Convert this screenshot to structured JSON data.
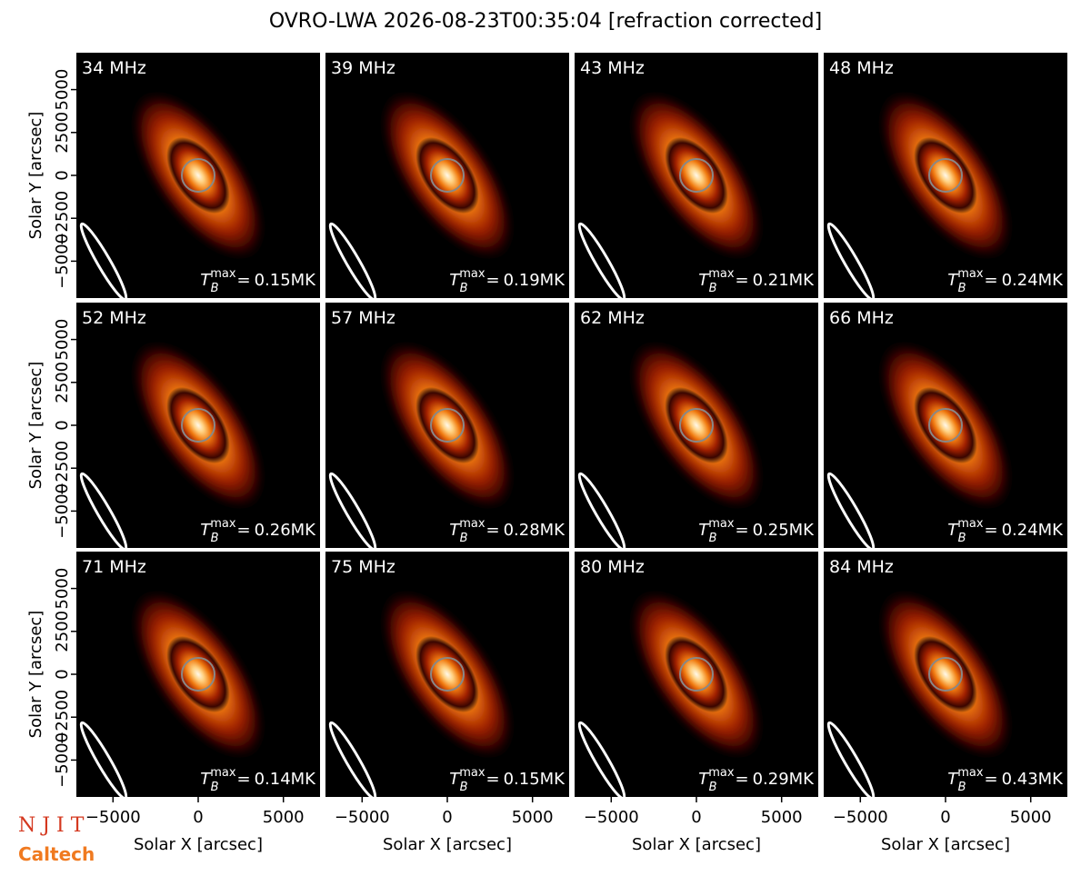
{
  "figure": {
    "title": "OVRO-LWA 2026-08-23T00:35:04 [refraction corrected]",
    "tmax_symbol": "T",
    "tmax_sub": "B",
    "tmax_sup": "max",
    "tmax_eq": "=",
    "logos": [
      "N J I T",
      "Caltech"
    ]
  },
  "chart_data": [
    {
      "type": "image",
      "title": "34 MHz",
      "annotation": "0.15MK",
      "xlim": [
        -7150,
        7150
      ],
      "ylim": [
        -7150,
        7150
      ],
      "yticks": [
        {
          "value": -5000,
          "label": "−5000"
        },
        {
          "value": -2500,
          "label": "−2500"
        },
        0,
        2500,
        5000
      ],
      "ylabel": "Solar Y [arcsec]"
    },
    {
      "type": "image",
      "title": "39 MHz",
      "annotation": "0.19MK",
      "xlim": [
        -7150,
        7150
      ],
      "ylim": [
        -7150,
        7150
      ]
    },
    {
      "type": "image",
      "title": "43 MHz",
      "annotation": "0.21MK",
      "xlim": [
        -7150,
        7150
      ],
      "ylim": [
        -7150,
        7150
      ]
    },
    {
      "type": "image",
      "title": "48 MHz",
      "annotation": "0.24MK",
      "xlim": [
        -7150,
        7150
      ],
      "ylim": [
        -7150,
        7150
      ]
    },
    {
      "type": "image",
      "title": "52 MHz",
      "annotation": "0.26MK",
      "xlim": [
        -7150,
        7150
      ],
      "ylim": [
        -7150,
        7150
      ],
      "yticks": [
        {
          "value": -5000,
          "label": "−5000"
        },
        {
          "value": -2500,
          "label": "−2500"
        },
        0,
        2500,
        5000
      ],
      "ylabel": "Solar Y [arcsec]"
    },
    {
      "type": "image",
      "title": "57 MHz",
      "annotation": "0.28MK",
      "xlim": [
        -7150,
        7150
      ],
      "ylim": [
        -7150,
        7150
      ]
    },
    {
      "type": "image",
      "title": "62 MHz",
      "annotation": "0.25MK",
      "xlim": [
        -7150,
        7150
      ],
      "ylim": [
        -7150,
        7150
      ]
    },
    {
      "type": "image",
      "title": "66 MHz",
      "annotation": "0.24MK",
      "xlim": [
        -7150,
        7150
      ],
      "ylim": [
        -7150,
        7150
      ]
    },
    {
      "type": "image",
      "title": "71 MHz",
      "annotation": "0.14MK",
      "xlim": [
        -7150,
        7150
      ],
      "ylim": [
        -7150,
        7150
      ],
      "yticks": [
        {
          "value": -5000,
          "label": "−5000"
        },
        {
          "value": -2500,
          "label": "−2500"
        },
        0,
        2500,
        5000
      ],
      "ylabel": "Solar Y [arcsec]",
      "xticks": [
        {
          "value": -5000,
          "label": "−5000"
        },
        0,
        5000
      ],
      "xlabel": "Solar X [arcsec]"
    },
    {
      "type": "image",
      "title": "75 MHz",
      "annotation": "0.15MK",
      "xlim": [
        -7150,
        7150
      ],
      "ylim": [
        -7150,
        7150
      ],
      "xticks": [
        {
          "value": -5000,
          "label": "−5000"
        },
        0,
        5000
      ],
      "xlabel": "Solar X [arcsec]"
    },
    {
      "type": "image",
      "title": "80 MHz",
      "annotation": "0.29MK",
      "xlim": [
        -7150,
        7150
      ],
      "ylim": [
        -7150,
        7150
      ],
      "xticks": [
        {
          "value": -5000,
          "label": "−5000"
        },
        0,
        5000
      ],
      "xlabel": "Solar X [arcsec]"
    },
    {
      "type": "image",
      "title": "84 MHz",
      "annotation": "0.43MK",
      "xlim": [
        -7150,
        7150
      ],
      "ylim": [
        -7150,
        7150
      ],
      "xticks": [
        {
          "value": -5000,
          "label": "−5000"
        },
        0,
        5000
      ],
      "xlabel": "Solar X [arcsec]"
    }
  ]
}
